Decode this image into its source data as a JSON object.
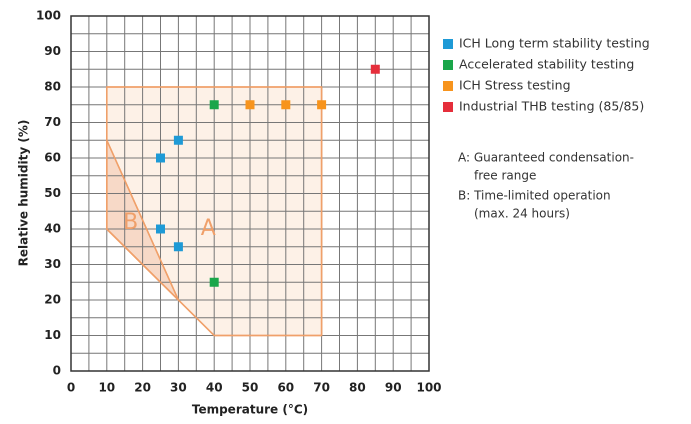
{
  "chart_data": {
    "type": "scatter",
    "x_label": "Temperature (°C)",
    "y_label": "Relative humidity (%)",
    "xlim": [
      0,
      100
    ],
    "ylim": [
      0,
      100
    ],
    "xticks": [
      0,
      10,
      20,
      30,
      40,
      50,
      60,
      70,
      80,
      90,
      100
    ],
    "yticks": [
      0,
      10,
      20,
      30,
      40,
      50,
      60,
      70,
      80,
      90,
      100
    ],
    "grid": true,
    "regions": [
      {
        "label": "A",
        "x": [
          10,
          70,
          70,
          40,
          30,
          10
        ],
        "y": [
          80,
          80,
          10,
          10,
          20,
          40
        ],
        "fill": "#fdeee3",
        "stroke": "#f0a06a"
      },
      {
        "label": "B",
        "x": [
          10,
          30,
          10
        ],
        "y": [
          65,
          20,
          40
        ],
        "fill": "#f6d5c1",
        "stroke": "#f0a06a"
      }
    ],
    "series": [
      {
        "name": "ICH Long term stability testing",
        "color": "#1e9ad6",
        "x": [
          25,
          30,
          25,
          30
        ],
        "values": [
          60,
          65,
          40,
          35
        ]
      },
      {
        "name": "Accelerated stability testing",
        "color": "#1aa64a",
        "x": [
          40,
          40
        ],
        "values": [
          75,
          25
        ]
      },
      {
        "name": "ICH Stress testing",
        "color": "#f7941d",
        "x": [
          50,
          60,
          70
        ],
        "values": [
          75,
          75,
          75
        ]
      },
      {
        "name": "Industrial THB testing (85/85)",
        "color": "#e52e3b",
        "x": [
          85
        ],
        "values": [
          85
        ]
      }
    ],
    "notes": [
      [
        "A: Guaranteed condensation-",
        "free range"
      ],
      [
        "B: Time-limited operation",
        "(max. 24 hours)"
      ]
    ]
  }
}
